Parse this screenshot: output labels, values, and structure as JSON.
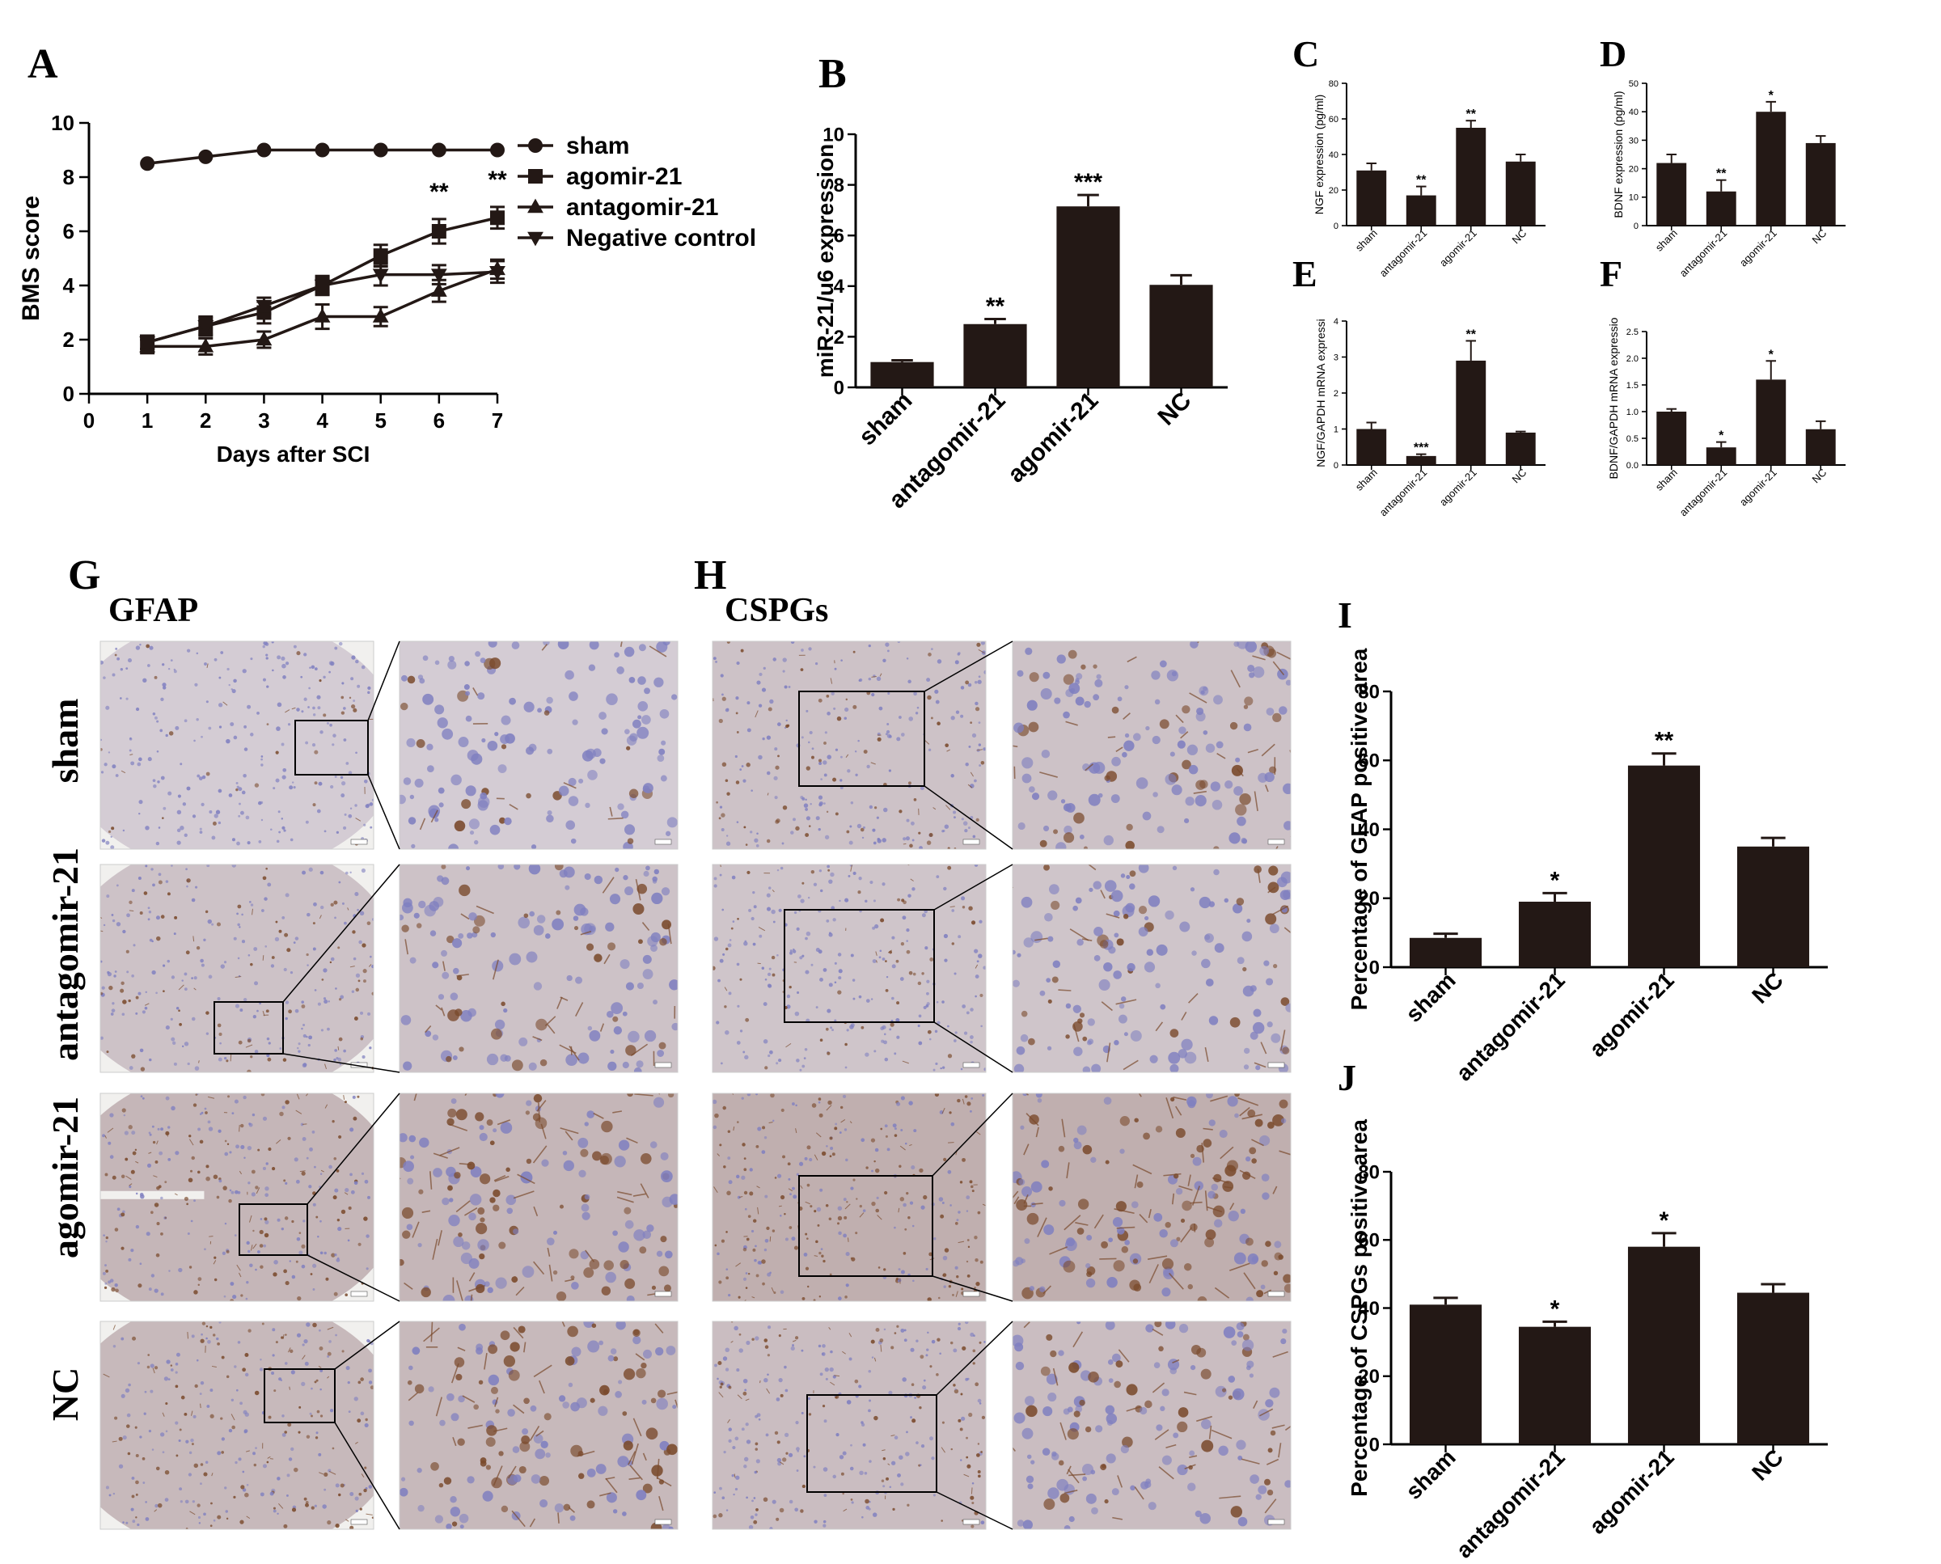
{
  "panel_letters": {
    "A": "A",
    "B": "B",
    "C": "C",
    "D": "D",
    "E": "E",
    "F": "F",
    "G": "G",
    "H": "H",
    "I": "I",
    "J": "J"
  },
  "micrographs": {
    "G_title": "GFAP",
    "H_title": "CSPGs",
    "row_labels": [
      "sham",
      "antagomir-21",
      "agomir-21",
      "NC"
    ],
    "staining": {
      "background": "#d9d3dd",
      "nuclei": "#7f7fc0",
      "dab": "#7a4a2c"
    },
    "dab_level": {
      "GFAP": [
        0.15,
        0.35,
        0.6,
        0.55
      ],
      "CSPGs": [
        0.35,
        0.3,
        0.75,
        0.45
      ]
    }
  },
  "colors": {
    "bar": "#231815",
    "axis": "#000000",
    "background": "#ffffff"
  },
  "chart_data": [
    {
      "id": "A",
      "type": "line",
      "xlabel": "Days after SCI",
      "ylabel": "BMS score",
      "xlim": [
        0,
        7
      ],
      "ylim": [
        0,
        10
      ],
      "xticks": [
        0,
        1,
        2,
        3,
        4,
        5,
        6,
        7
      ],
      "yticks": [
        0,
        2,
        4,
        6,
        8,
        10
      ],
      "x": [
        1,
        2,
        3,
        4,
        5,
        6,
        7
      ],
      "legend_position": "right",
      "series": [
        {
          "name": "sham",
          "marker": "circle",
          "values": [
            8.5,
            8.75,
            9,
            9,
            9,
            9,
            9
          ],
          "errors": [
            0,
            0,
            0,
            0,
            0,
            0,
            0
          ]
        },
        {
          "name": "agomir-21",
          "marker": "square",
          "values": [
            1.9,
            2.5,
            3.0,
            4.0,
            5.1,
            6.0,
            6.5
          ],
          "errors": [
            0.25,
            0.3,
            0.4,
            0.3,
            0.4,
            0.45,
            0.4
          ]
        },
        {
          "name": "antagomir-21",
          "marker": "triangle-up",
          "values": [
            1.75,
            1.75,
            2.0,
            2.85,
            2.85,
            3.8,
            4.6
          ],
          "errors": [
            0.25,
            0.3,
            0.3,
            0.45,
            0.35,
            0.4,
            0.35
          ]
        },
        {
          "name": "Negative control",
          "marker": "triangle-down",
          "values": [
            1.9,
            2.5,
            3.25,
            4.0,
            4.4,
            4.4,
            4.5
          ],
          "errors": [
            0.25,
            0.35,
            0.3,
            0.35,
            0.4,
            0.35,
            0.4
          ]
        }
      ],
      "annotations": [
        {
          "x": 6,
          "y": 6.45,
          "text": "**"
        },
        {
          "x": 7,
          "y": 6.9,
          "text": "**"
        }
      ]
    },
    {
      "id": "B",
      "type": "bar",
      "categories": [
        "sham",
        "antagomir-21",
        "agomir-21",
        "NC"
      ],
      "values": [
        1.0,
        2.5,
        7.15,
        4.05
      ],
      "errors": [
        0.07,
        0.2,
        0.45,
        0.38
      ],
      "significance": [
        "",
        "**",
        "***",
        ""
      ],
      "ylabel": "miR-21/u6 expression",
      "ylim": [
        0,
        10
      ],
      "yticks": [
        0,
        2,
        4,
        6,
        8,
        10
      ]
    },
    {
      "id": "C",
      "type": "bar",
      "categories": [
        "sham",
        "antagomir-21",
        "agomir-21",
        "NC"
      ],
      "values": [
        31,
        17,
        55,
        36
      ],
      "errors": [
        4,
        5,
        4,
        4
      ],
      "significance": [
        "",
        "**",
        "**",
        ""
      ],
      "ylabel": "NGF expression (pg/ml)",
      "ylim": [
        0,
        80
      ],
      "yticks": [
        0,
        20,
        40,
        60,
        80
      ]
    },
    {
      "id": "D",
      "type": "bar",
      "categories": [
        "sham",
        "antagomir-21",
        "agomir-21",
        "NC"
      ],
      "values": [
        22,
        12,
        40,
        29
      ],
      "errors": [
        3,
        4,
        3.5,
        2.5
      ],
      "significance": [
        "",
        "**",
        "*",
        ""
      ],
      "ylabel": "BDNF expression (pg/ml)",
      "ylim": [
        0,
        50
      ],
      "yticks": [
        0,
        10,
        20,
        30,
        40,
        50
      ]
    },
    {
      "id": "E",
      "type": "bar",
      "categories": [
        "sham",
        "antagomir-21",
        "agomir-21",
        "NC"
      ],
      "values": [
        1.0,
        0.25,
        2.9,
        0.9
      ],
      "errors": [
        0.18,
        0.05,
        0.55,
        0.03
      ],
      "significance": [
        "",
        "***",
        "**",
        ""
      ],
      "ylabel": "NGF/GAPDH mRNA expressi",
      "ylim": [
        0,
        4
      ],
      "yticks": [
        0,
        1,
        2,
        3,
        4
      ]
    },
    {
      "id": "F",
      "type": "bar",
      "categories": [
        "sham",
        "antagomir-21",
        "agomir-21",
        "NC"
      ],
      "values": [
        1.0,
        0.33,
        1.6,
        0.67
      ],
      "errors": [
        0.05,
        0.1,
        0.35,
        0.15
      ],
      "significance": [
        "",
        "*",
        "*",
        ""
      ],
      "ylabel": "BDNF/GAPDH mRNA expressio",
      "ylim": [
        0,
        2.5
      ],
      "yticks": [
        0,
        0.5,
        1.0,
        1.5,
        2.0,
        2.5
      ],
      "ytick_labels": [
        "0.0",
        "0.5",
        "1.0",
        "1.5",
        "2.0",
        "2.5"
      ]
    },
    {
      "id": "I",
      "type": "bar",
      "categories": [
        "sham",
        "antagomir-21",
        "agomir-21",
        "NC"
      ],
      "values": [
        8.5,
        19,
        58.5,
        35
      ],
      "errors": [
        1.2,
        2.5,
        3.5,
        2.5
      ],
      "significance": [
        "",
        "*",
        "**",
        ""
      ],
      "ylabel": "Percentage of GFAP positive area",
      "ylim": [
        0,
        80
      ],
      "yticks": [
        0,
        20,
        40,
        60,
        80
      ]
    },
    {
      "id": "J",
      "type": "bar",
      "categories": [
        "sham",
        "antagomir-21",
        "agomir-21",
        "NC"
      ],
      "values": [
        41,
        34.5,
        58,
        44.5
      ],
      "errors": [
        2,
        1.5,
        4,
        2.5
      ],
      "significance": [
        "",
        "*",
        "*",
        ""
      ],
      "ylabel": "Percentage of CSPGs positive area",
      "ylim": [
        0,
        80
      ],
      "yticks": [
        0,
        20,
        40,
        60,
        80
      ]
    }
  ]
}
